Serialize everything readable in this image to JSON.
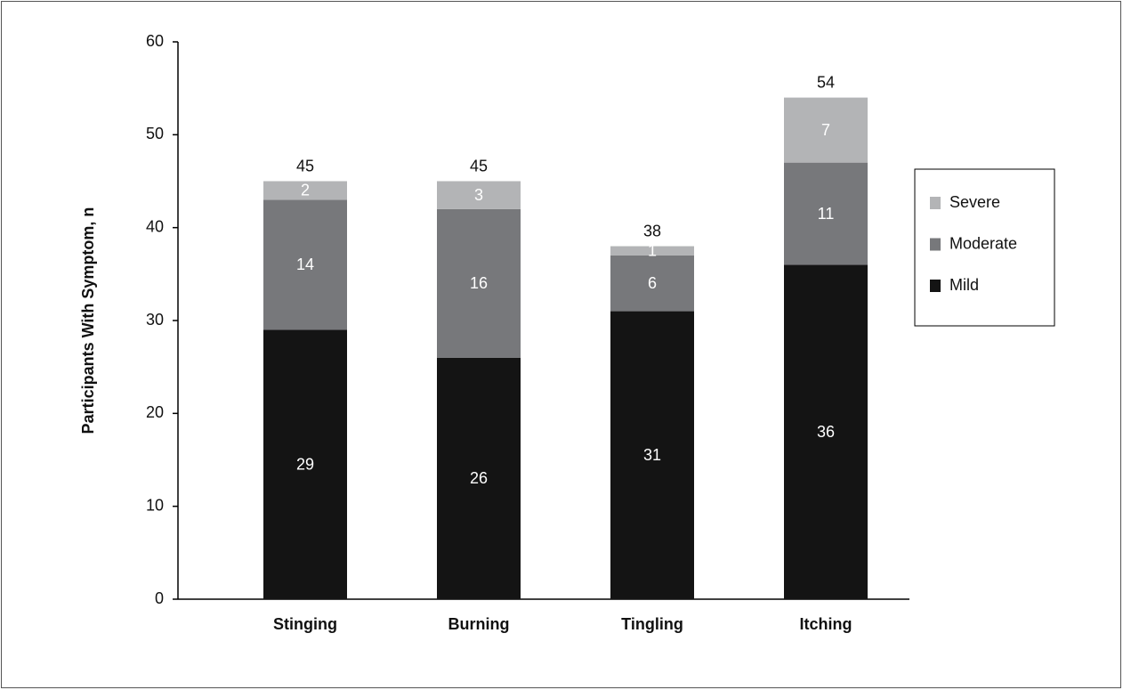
{
  "chart_data": {
    "type": "stacked_bar",
    "y_label": "Participants With Symptom, n",
    "categories": [
      "Stinging",
      "Burning",
      "Tingling",
      "Itching"
    ],
    "series": [
      {
        "name": "Mild",
        "color": "#141414",
        "values": [
          29,
          26,
          31,
          36
        ]
      },
      {
        "name": "Moderate",
        "color": "#77787b",
        "values": [
          14,
          16,
          6,
          11
        ]
      },
      {
        "name": "Severe",
        "color": "#b3b4b6",
        "values": [
          2,
          3,
          1,
          7
        ]
      }
    ],
    "totals": [
      45,
      45,
      38,
      54
    ],
    "ylim": [
      0,
      60
    ],
    "yticks": [
      0,
      10,
      20,
      30,
      40,
      50,
      60
    ],
    "legend": "right"
  }
}
